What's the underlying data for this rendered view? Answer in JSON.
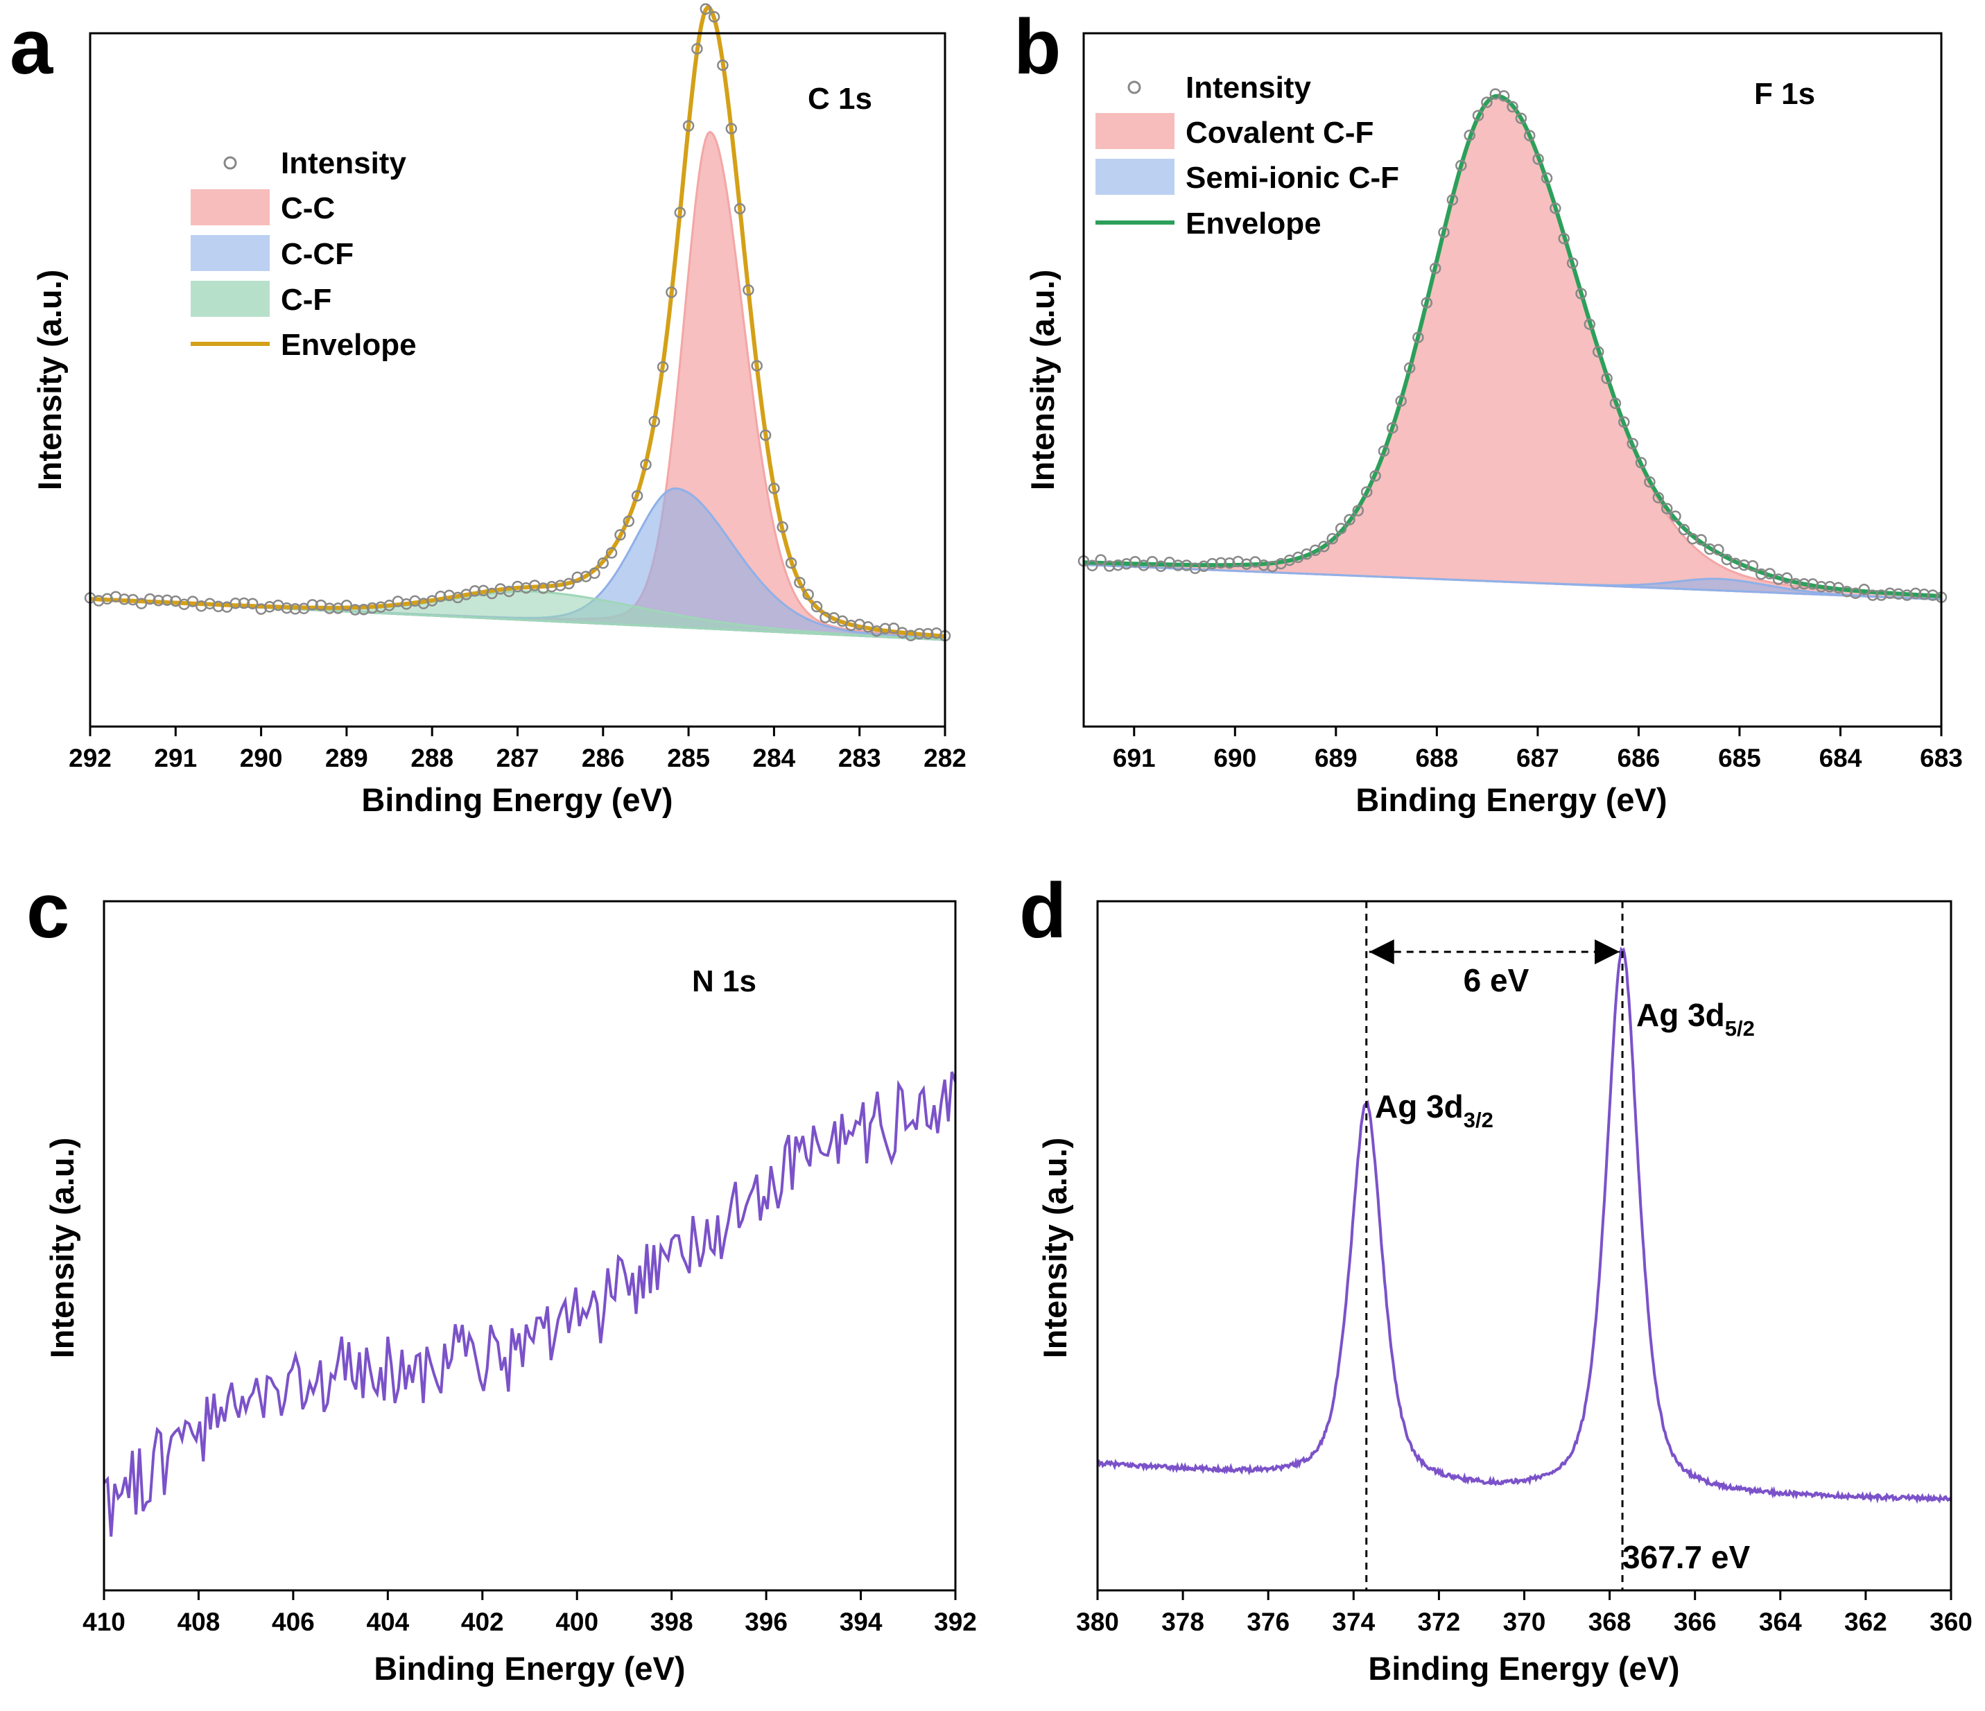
{
  "figure": {
    "panels": [
      "a",
      "b",
      "c",
      "d"
    ]
  },
  "chart_data": [
    {
      "id": "a",
      "type": "line",
      "title": "C 1s",
      "xlabel": "Binding Energy (eV)",
      "ylabel": "Intensity (a.u.)",
      "xlim": [
        292,
        282
      ],
      "ylim": [
        0,
        1.2
      ],
      "xticks": [
        "292",
        "291",
        "290",
        "289",
        "288",
        "287",
        "286",
        "285",
        "284",
        "283",
        "282"
      ],
      "legend_position": "top-left",
      "legend": [
        "Intensity",
        "C-C",
        "C-CF",
        "C-F",
        "Envelope"
      ],
      "baseline": {
        "x_start": 292,
        "y_start": 0.22,
        "x_end": 282,
        "y_end": 0.15
      },
      "series": [
        {
          "name": "C-C",
          "kind": "filled-peak",
          "color": "#f4a6a6",
          "center": 284.75,
          "height": 0.86,
          "width_left": 0.42,
          "width_right": 0.32
        },
        {
          "name": "C-CF",
          "kind": "filled-peak",
          "color": "#8fb0e8",
          "center": 285.15,
          "height": 0.24,
          "width_left": 0.7,
          "width_right": 0.5
        },
        {
          "name": "C-F",
          "kind": "filled-peak",
          "color": "#9fd6b8",
          "center": 286.8,
          "height": 0.05,
          "width_left": 1.3,
          "width_right": 1.0
        },
        {
          "name": "Envelope",
          "kind": "line",
          "color": "#d4a017"
        },
        {
          "name": "Intensity",
          "kind": "markers",
          "color": "#888888"
        }
      ]
    },
    {
      "id": "b",
      "type": "line",
      "title": "F 1s",
      "xlabel": "Binding Energy (eV)",
      "ylabel": "Intensity (a.u.)",
      "xlim": [
        691.5,
        683
      ],
      "ylim": [
        0,
        1.2
      ],
      "xticks": [
        "691",
        "690",
        "689",
        "688",
        "687",
        "686",
        "685",
        "684",
        "683"
      ],
      "legend_position": "top-left",
      "legend": [
        "Intensity",
        "Covalent C-F",
        "Semi-ionic C-F",
        "Envelope"
      ],
      "baseline": {
        "x_start": 691.5,
        "y_start": 0.28,
        "x_end": 683,
        "y_end": 0.22
      },
      "series": [
        {
          "name": "Covalent C-F",
          "kind": "filled-peak",
          "color": "#f4a6a6",
          "center": 687.4,
          "height": 0.84,
          "width_left": 0.85,
          "width_right": 0.68
        },
        {
          "name": "Semi-ionic C-F",
          "kind": "filled-peak",
          "color": "#8fb0e8",
          "center": 685.2,
          "height": 0.02,
          "width_left": 0.5,
          "width_right": 0.45
        },
        {
          "name": "Envelope",
          "kind": "line",
          "color": "#2ca05a"
        },
        {
          "name": "Intensity",
          "kind": "markers",
          "color": "#888888"
        }
      ]
    },
    {
      "id": "c",
      "type": "line",
      "title": "N 1s",
      "xlabel": "Binding Energy (eV)",
      "ylabel": "Intensity (a.u.)",
      "xlim": [
        410,
        392
      ],
      "ylim": [
        0,
        1
      ],
      "xticks": [
        "410",
        "408",
        "406",
        "404",
        "402",
        "400",
        "398",
        "396",
        "394",
        "392"
      ],
      "series": [
        {
          "name": "N 1s",
          "kind": "noisy-line",
          "color": "#7b52c9",
          "trend_start": 0.13,
          "trend_end": 0.68,
          "noise": 0.045
        }
      ]
    },
    {
      "id": "d",
      "type": "line",
      "title": "",
      "xlabel": "Binding Energy (eV)",
      "ylabel": "Intensity (a.u.)",
      "xlim": [
        380,
        360
      ],
      "ylim": [
        0,
        1
      ],
      "xticks": [
        "380",
        "378",
        "376",
        "374",
        "372",
        "370",
        "368",
        "366",
        "364",
        "362",
        "360"
      ],
      "series": [
        {
          "name": "Ag 3d",
          "kind": "line",
          "color": "#7b52c9",
          "peaks": [
            {
              "center": 373.7,
              "height": 0.55
            },
            {
              "center": 367.7,
              "height": 0.79
            }
          ],
          "baseline_left": 0.15,
          "baseline_right": 0.09
        }
      ],
      "annotations": {
        "peak1_label": "Ag 3d",
        "peak1_sub": "3/2",
        "peak2_label": "Ag 3d",
        "peak2_sub": "5/2",
        "separation": "6 eV",
        "position_label": "367.7 eV",
        "line_positions": [
          373.7,
          367.7
        ]
      }
    }
  ]
}
